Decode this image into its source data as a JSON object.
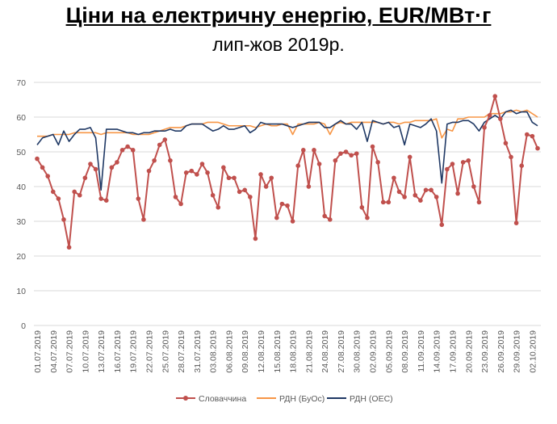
{
  "header": {
    "title": "Ціни на електричну енергію, EUR/МВт·г",
    "subtitle": "лип-жов 2019р."
  },
  "colors": {
    "slovakia": "#C0504D",
    "rdn_buos": "#F79646",
    "rdn_oes": "#1F3864",
    "grid": "#D9D9D9",
    "axis_text": "#595959"
  },
  "chart_data": {
    "type": "line",
    "title": "Ціни на електричну енергію, EUR/МВт·г",
    "subtitle": "лип-жов 2019р.",
    "xlabel": "",
    "ylabel": "",
    "ylim": [
      0,
      70
    ],
    "yticks": [
      0,
      10,
      20,
      30,
      40,
      50,
      60,
      70
    ],
    "grid": true,
    "legend_position": "bottom",
    "x_start": "01.07.2019",
    "x_tick_labels": [
      "01.07.2019",
      "04.07.2019",
      "07.07.2019",
      "10.07.2019",
      "13.07.2019",
      "16.07.2019",
      "19.07.2019",
      "22.07.2019",
      "25.07.2019",
      "28.07.2019",
      "31.07.2019",
      "03.08.2019",
      "06.08.2019",
      "09.08.2019",
      "12.08.2019",
      "15.08.2019",
      "18.08.2019",
      "21.08.2019",
      "24.08.2019",
      "27.08.2019",
      "30.08.2019",
      "02.09.2019",
      "05.09.2019",
      "08.09.2019",
      "11.09.2019",
      "14.09.2019",
      "17.09.2019",
      "20.09.2019",
      "23.09.2019",
      "26.09.2019",
      "29.09.2019",
      "02.10.2019"
    ],
    "series": [
      {
        "name": "Словаччина",
        "color": "#C0504D",
        "marker": true,
        "values": [
          48,
          45.5,
          43,
          38.5,
          36.5,
          30.5,
          22.5,
          38.5,
          37.5,
          42.5,
          46.5,
          45,
          36.5,
          36,
          45.5,
          47,
          50.5,
          51.5,
          50.5,
          36.5,
          30.5,
          44.5,
          47.5,
          52,
          53.5,
          47.5,
          37,
          35,
          44,
          44.5,
          43.5,
          46.5,
          44,
          37.5,
          34,
          45.5,
          42.5,
          42.5,
          38.5,
          39,
          37,
          25,
          43.5,
          40,
          42.5,
          31,
          35,
          34.5,
          30,
          46,
          50.5,
          40,
          50.5,
          46.5,
          31.5,
          30.5,
          47.5,
          49.5,
          50,
          49,
          49.5,
          34,
          31,
          51.5,
          47,
          35.5,
          35.5,
          42.5,
          38.5,
          37,
          48.5,
          37.5,
          36,
          39,
          39,
          37,
          29,
          45,
          46.5,
          38,
          47,
          47.5,
          40,
          35.5,
          57,
          60.5,
          66,
          59.5,
          52.5,
          48.5,
          29.5,
          46,
          55,
          54.5,
          51
        ]
      },
      {
        "name": "РДН (БуОс)",
        "color": "#F79646",
        "marker": false,
        "values": [
          54.5,
          54.5,
          54.5,
          55,
          55,
          55,
          55,
          55.5,
          55.5,
          55.5,
          55.5,
          55.5,
          55,
          55.5,
          55.5,
          55.5,
          55.5,
          55.5,
          55,
          55,
          55,
          55,
          55.5,
          56,
          56.5,
          57,
          57,
          57,
          57.5,
          58,
          58,
          58,
          58.5,
          58.5,
          58.5,
          58,
          57.5,
          57.5,
          57.5,
          57.5,
          57.5,
          57,
          57.5,
          58,
          57.5,
          57.5,
          58,
          58,
          55,
          58,
          58,
          58,
          58,
          58.5,
          58,
          55,
          58,
          58.5,
          58,
          58.5,
          58.5,
          58.5,
          58.5,
          58.5,
          58.5,
          58,
          58.5,
          58.5,
          58,
          58.5,
          58.5,
          59,
          59,
          59,
          59,
          59.5,
          54,
          56.5,
          56,
          59.5,
          59.5,
          60,
          60,
          60,
          60,
          61,
          61,
          61,
          61.5,
          61.5,
          62,
          61.5,
          62,
          61,
          60
        ]
      },
      {
        "name": "РДН (ОЕС)",
        "color": "#1F3864",
        "marker": false,
        "values": [
          52,
          54,
          54.5,
          55,
          52,
          56,
          53,
          55,
          56.5,
          56.5,
          57,
          54,
          39,
          56.5,
          56.5,
          56.5,
          56,
          55.5,
          55.5,
          55,
          55.5,
          55.5,
          56,
          56,
          56,
          56.5,
          56,
          56,
          57.5,
          58,
          58,
          58,
          57,
          56,
          56.5,
          57.5,
          56.5,
          56.5,
          57,
          57.5,
          55.5,
          56.5,
          58.5,
          58,
          58,
          58,
          58,
          57.5,
          57,
          57.5,
          58,
          58.5,
          58.5,
          58.5,
          57,
          57,
          58,
          59,
          58,
          58,
          56.5,
          58.5,
          53,
          59,
          58.5,
          58,
          58.5,
          57,
          57.5,
          52,
          58,
          57.5,
          57,
          58,
          59.5,
          56,
          41,
          58,
          58.5,
          58.5,
          59,
          59,
          58,
          56,
          58.5,
          59.5,
          60.5,
          59.5,
          61.5,
          62,
          61,
          61.5,
          61.5,
          58.5,
          57.5
        ]
      }
    ]
  }
}
